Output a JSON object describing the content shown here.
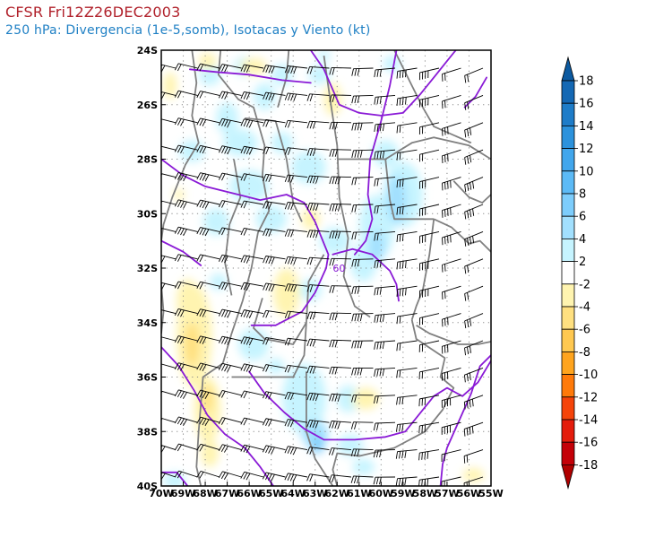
{
  "header": {
    "title": "CFSR Fri12Z26DEC2003",
    "subtitle": "250 hPa: Divergencia (1e-5,somb), Isotacas y Viento (kt)",
    "title_color": "#b0202a",
    "subtitle_color": "#1d7fc4"
  },
  "map": {
    "lon_range": [
      -70,
      -55
    ],
    "lat_range": [
      -40,
      -24
    ],
    "lon_ticks": [
      {
        "lon": -70,
        "label": "70W"
      },
      {
        "lon": -69,
        "label": "69W"
      },
      {
        "lon": -68,
        "label": "68W"
      },
      {
        "lon": -67,
        "label": "67W"
      },
      {
        "lon": -66,
        "label": "66W"
      },
      {
        "lon": -65,
        "label": "65W"
      },
      {
        "lon": -64,
        "label": "64W"
      },
      {
        "lon": -63,
        "label": "63W"
      },
      {
        "lon": -62,
        "label": "62W"
      },
      {
        "lon": -61,
        "label": "61W"
      },
      {
        "lon": -60,
        "label": "60W"
      },
      {
        "lon": -59,
        "label": "59W"
      },
      {
        "lon": -58,
        "label": "58W"
      },
      {
        "lon": -57,
        "label": "57W"
      },
      {
        "lon": -56,
        "label": "56W"
      },
      {
        "lon": -55,
        "label": "55W"
      }
    ],
    "lat_ticks": [
      {
        "lat": -24,
        "label": "24S"
      },
      {
        "lat": -26,
        "label": "26S"
      },
      {
        "lat": -28,
        "label": "28S"
      },
      {
        "lat": -30,
        "label": "30S"
      },
      {
        "lat": -32,
        "label": "32S"
      },
      {
        "lat": -34,
        "label": "34S"
      },
      {
        "lat": -36,
        "label": "36S"
      },
      {
        "lat": -38,
        "label": "38S"
      },
      {
        "lat": -40,
        "label": "40S"
      }
    ],
    "isotach_label": "60",
    "isotach_label_pos": {
      "lon": -62.2,
      "lat": -32.0
    },
    "colors": {
      "isotach": "#8a1ad6",
      "border": "#808080",
      "barb": "#000000",
      "grid": "#888888"
    },
    "shading": {
      "positive": [
        {
          "lon": -67.8,
          "lat": -24.9,
          "rx": 0.5,
          "ry": 0.4,
          "level": 4
        },
        {
          "lon": -66.2,
          "lat": -24.6,
          "rx": 0.5,
          "ry": 0.35,
          "level": 4
        },
        {
          "lon": -64.5,
          "lat": -24.9,
          "rx": 0.5,
          "ry": 0.4,
          "level": 4
        },
        {
          "lon": -62.8,
          "lat": -24.9,
          "rx": 0.5,
          "ry": 0.35,
          "level": 4
        },
        {
          "lon": -59.5,
          "lat": -24.5,
          "rx": 0.4,
          "ry": 0.3,
          "level": 4
        },
        {
          "lon": -67.0,
          "lat": -26.5,
          "rx": 0.5,
          "ry": 0.6,
          "level": 4
        },
        {
          "lon": -65.3,
          "lat": -25.7,
          "rx": 0.5,
          "ry": 0.5,
          "level": 4
        },
        {
          "lon": -64.5,
          "lat": -27.4,
          "rx": 0.5,
          "ry": 0.4,
          "level": 4
        },
        {
          "lon": -66.4,
          "lat": -27.4,
          "rx": 0.8,
          "ry": 0.5,
          "level": 4
        },
        {
          "lon": -68.6,
          "lat": -27.7,
          "rx": 0.6,
          "ry": 0.4,
          "level": 4
        },
        {
          "lon": -66.0,
          "lat": -29.0,
          "rx": 0.9,
          "ry": 0.6,
          "level": 4
        },
        {
          "lon": -63.3,
          "lat": -28.3,
          "rx": 0.8,
          "ry": 0.6,
          "level": 4
        },
        {
          "lon": -67.5,
          "lat": -30.3,
          "rx": 0.6,
          "ry": 0.5,
          "level": 4
        },
        {
          "lon": -65.0,
          "lat": -30.2,
          "rx": 0.7,
          "ry": 0.5,
          "level": 4
        },
        {
          "lon": -59.8,
          "lat": -27.8,
          "rx": 0.6,
          "ry": 0.5,
          "level": 4
        },
        {
          "lon": -59.0,
          "lat": -29.3,
          "rx": 0.9,
          "ry": 1.2,
          "level": 4
        },
        {
          "lon": -60.2,
          "lat": -30.5,
          "rx": 0.8,
          "ry": 1.2,
          "level": 4
        },
        {
          "lon": -60.8,
          "lat": -31.8,
          "rx": 0.6,
          "ry": 0.7,
          "level": 4
        },
        {
          "lon": -59.3,
          "lat": -29.5,
          "rx": 0.45,
          "ry": 0.9,
          "level": 6
        },
        {
          "lon": -60.2,
          "lat": -31.2,
          "rx": 0.35,
          "ry": 0.6,
          "level": 6
        },
        {
          "lon": -62.1,
          "lat": -31.0,
          "rx": 0.7,
          "ry": 0.5,
          "level": 4
        },
        {
          "lon": -63.2,
          "lat": -32.8,
          "rx": 0.5,
          "ry": 0.4,
          "level": 4
        },
        {
          "lon": -65.8,
          "lat": -34.8,
          "rx": 0.7,
          "ry": 0.6,
          "level": 4
        },
        {
          "lon": -67.4,
          "lat": -32.5,
          "rx": 0.4,
          "ry": 0.3,
          "level": 4
        },
        {
          "lon": -63.5,
          "lat": -36.8,
          "rx": 1.0,
          "ry": 1.3,
          "level": 4
        },
        {
          "lon": -63.0,
          "lat": -38.1,
          "rx": 0.6,
          "ry": 0.5,
          "level": 6
        },
        {
          "lon": -62.9,
          "lat": -38.5,
          "rx": 0.3,
          "ry": 0.3,
          "level": 8
        },
        {
          "lon": -61.5,
          "lat": -36.8,
          "rx": 0.5,
          "ry": 0.5,
          "level": 4
        },
        {
          "lon": -61.4,
          "lat": -38.5,
          "rx": 0.6,
          "ry": 0.4,
          "level": 4
        },
        {
          "lon": -60.8,
          "lat": -39.3,
          "rx": 0.5,
          "ry": 0.3,
          "level": 4
        },
        {
          "lon": -64.8,
          "lat": -35.6,
          "rx": 0.4,
          "ry": 0.3,
          "level": 4
        },
        {
          "lon": -69.4,
          "lat": -39.8,
          "rx": 0.5,
          "ry": 0.3,
          "level": 4
        },
        {
          "lon": -62.6,
          "lat": -24.2,
          "rx": 0.3,
          "ry": 0.2,
          "level": 4
        }
      ],
      "negative": [
        {
          "lon": -69.6,
          "lat": -25.3,
          "rx": 0.3,
          "ry": 0.5,
          "level": 2
        },
        {
          "lon": -67.9,
          "lat": -24.4,
          "rx": 0.4,
          "ry": 0.3,
          "level": 2
        },
        {
          "lon": -65.8,
          "lat": -24.6,
          "rx": 0.6,
          "ry": 0.3,
          "level": 2
        },
        {
          "lon": -62.2,
          "lat": -25.8,
          "rx": 0.4,
          "ry": 0.6,
          "level": 2
        },
        {
          "lon": -69.2,
          "lat": -29.3,
          "rx": 0.25,
          "ry": 0.2,
          "level": 2
        },
        {
          "lon": -63.2,
          "lat": -30.2,
          "rx": 0.4,
          "ry": 0.4,
          "level": 2
        },
        {
          "lon": -68.5,
          "lat": -34.5,
          "rx": 0.8,
          "ry": 1.9,
          "level": 2
        },
        {
          "lon": -68.8,
          "lat": -33.2,
          "rx": 0.5,
          "ry": 0.8,
          "level": 2
        },
        {
          "lon": -67.9,
          "lat": -37.2,
          "rx": 0.6,
          "ry": 1.2,
          "level": 2
        },
        {
          "lon": -67.8,
          "lat": -38.8,
          "rx": 0.4,
          "ry": 0.5,
          "level": 2
        },
        {
          "lon": -68.6,
          "lat": -34.8,
          "rx": 0.35,
          "ry": 0.8,
          "level": 4
        },
        {
          "lon": -67.9,
          "lat": -36.8,
          "rx": 0.25,
          "ry": 0.5,
          "level": 4
        },
        {
          "lon": -64.3,
          "lat": -32.9,
          "rx": 0.6,
          "ry": 0.9,
          "level": 2
        },
        {
          "lon": -60.7,
          "lat": -36.8,
          "rx": 0.6,
          "ry": 0.4,
          "level": 2
        },
        {
          "lon": -55.8,
          "lat": -39.6,
          "rx": 0.5,
          "ry": 0.25,
          "level": 2
        }
      ]
    }
  },
  "colorbar": {
    "labels": [
      "18",
      "16",
      "14",
      "12",
      "10",
      "8",
      "6",
      "4",
      "2",
      "-2",
      "-4",
      "-6",
      "-8",
      "-10",
      "-12",
      "-14",
      "-16",
      "-18"
    ],
    "colors": [
      "#1468b4",
      "#1e7cc8",
      "#2c92dc",
      "#41a6ec",
      "#5cbaf6",
      "#7dcdfc",
      "#a2e0fe",
      "#c6f4ff",
      "#ffffff",
      "#fff4b0",
      "#ffe080",
      "#ffc850",
      "#ffa41e",
      "#ff7a0a",
      "#f5440a",
      "#e41c0c",
      "#c40008"
    ],
    "top_arrow_color": "#0c5aa0",
    "bottom_arrow_color": "#b00000"
  }
}
